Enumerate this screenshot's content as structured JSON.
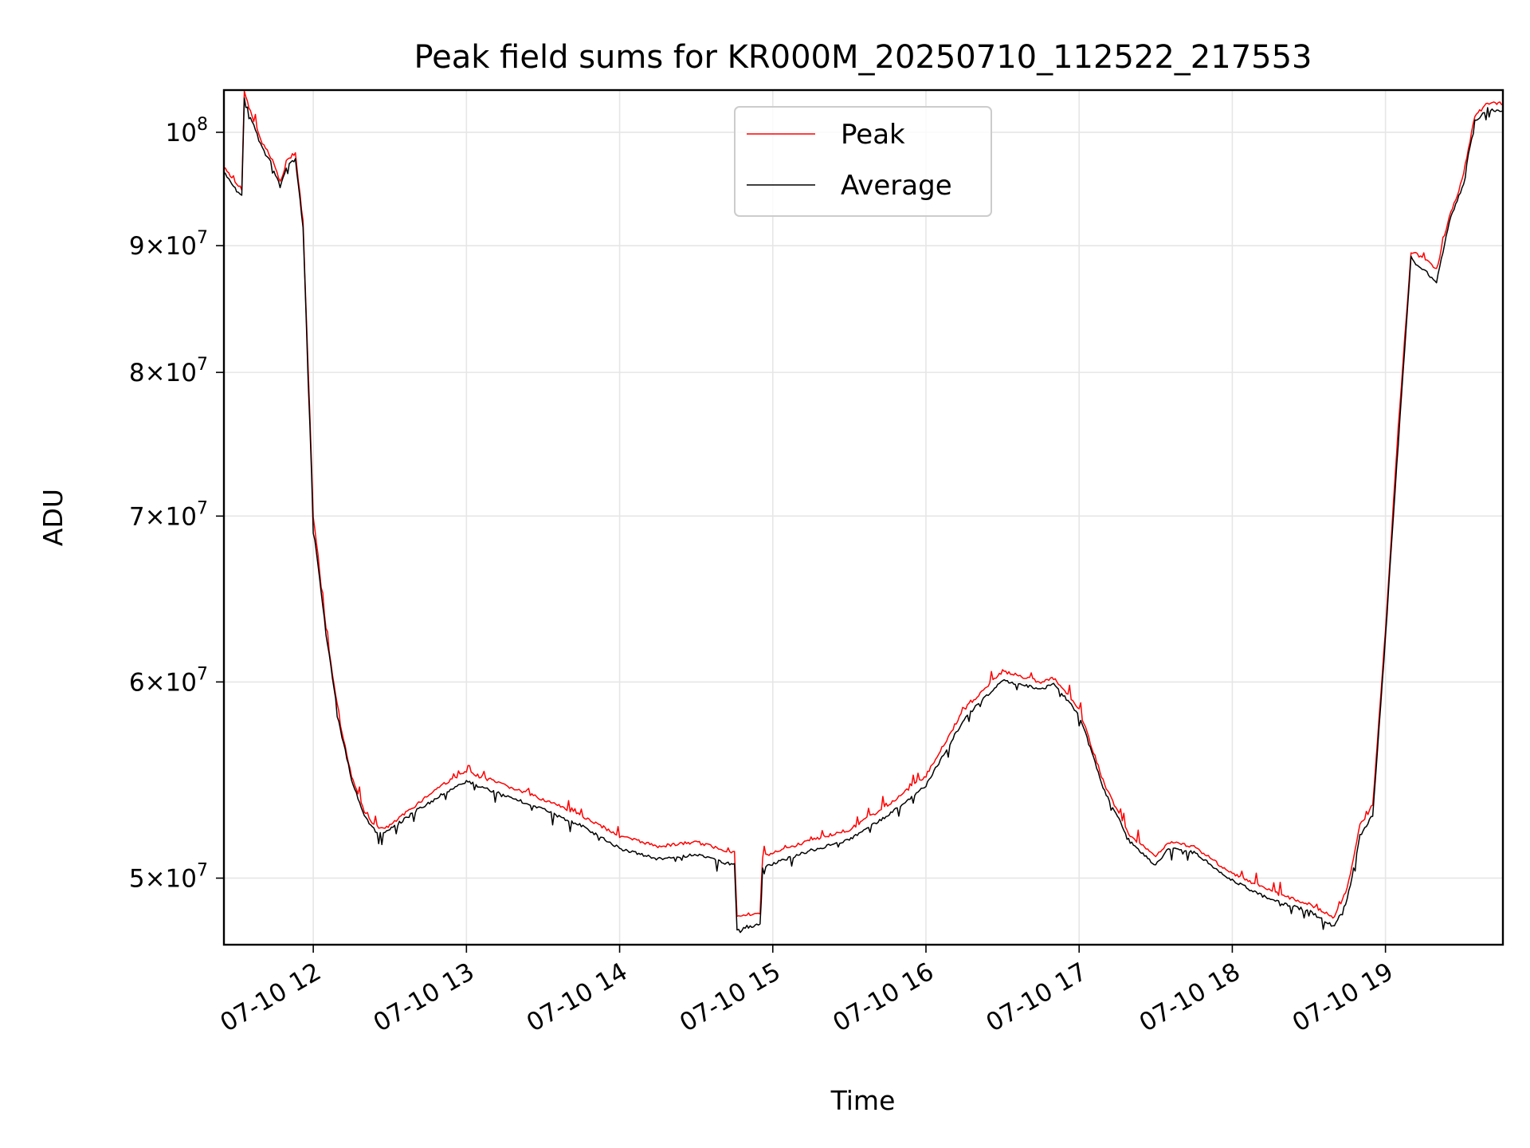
{
  "chart_data": {
    "type": "line",
    "title": "Peak field sums for KR000M_20250710_112522_217553",
    "xlabel": "Time",
    "ylabel": "ADU",
    "yscale": "log",
    "xlim": [
      "07-10 11:25",
      "07-10 19:46"
    ],
    "ylim": [
      47000000,
      104000000
    ],
    "grid": true,
    "legend_position": "top-center",
    "x_ticks": [
      {
        "value": "07-10 12:00",
        "label": "07-10 12"
      },
      {
        "value": "07-10 13:00",
        "label": "07-10 13"
      },
      {
        "value": "07-10 14:00",
        "label": "07-10 14"
      },
      {
        "value": "07-10 15:00",
        "label": "07-10 15"
      },
      {
        "value": "07-10 16:00",
        "label": "07-10 16"
      },
      {
        "value": "07-10 17:00",
        "label": "07-10 17"
      },
      {
        "value": "07-10 18:00",
        "label": "07-10 18"
      },
      {
        "value": "07-10 19:00",
        "label": "07-10 19"
      }
    ],
    "y_ticks": [
      {
        "value": 50000000,
        "mantissa": "5",
        "exponent": "7"
      },
      {
        "value": 60000000,
        "mantissa": "6",
        "exponent": "7"
      },
      {
        "value": 70000000,
        "mantissa": "7",
        "exponent": "7"
      },
      {
        "value": 80000000,
        "mantissa": "8",
        "exponent": "7"
      },
      {
        "value": 90000000,
        "mantissa": "9",
        "exponent": "7"
      },
      {
        "value": 100000000,
        "mantissa": "",
        "exponent": "8"
      }
    ],
    "series": [
      {
        "name": "Peak",
        "color": "#ff0000",
        "points": [
          [
            "07-10 11:25",
            96800000
          ],
          [
            "07-10 11:30",
            95200000
          ],
          [
            "07-10 11:32",
            94900000
          ],
          [
            "07-10 11:33",
            103800000
          ],
          [
            "07-10 11:36",
            101500000
          ],
          [
            "07-10 11:40",
            99000000
          ],
          [
            "07-10 11:44",
            97500000
          ],
          [
            "07-10 11:47",
            95500000
          ],
          [
            "07-10 11:50",
            97500000
          ],
          [
            "07-10 11:53",
            98000000
          ],
          [
            "07-10 11:56",
            92000000
          ],
          [
            "07-10 12:00",
            70000000
          ],
          [
            "07-10 12:05",
            63000000
          ],
          [
            "07-10 12:10",
            58000000
          ],
          [
            "07-10 12:15",
            55000000
          ],
          [
            "07-10 12:20",
            53200000
          ],
          [
            "07-10 12:25",
            52300000
          ],
          [
            "07-10 12:30",
            52500000
          ],
          [
            "07-10 12:40",
            53500000
          ],
          [
            "07-10 12:50",
            54500000
          ],
          [
            "07-10 13:00",
            55200000
          ],
          [
            "07-10 13:15",
            54500000
          ],
          [
            "07-10 13:30",
            53800000
          ],
          [
            "07-10 13:45",
            53000000
          ],
          [
            "07-10 14:00",
            52000000
          ],
          [
            "07-10 14:15",
            51500000
          ],
          [
            "07-10 14:30",
            51700000
          ],
          [
            "07-10 14:45",
            51200000
          ],
          [
            "07-10 14:46",
            48300000
          ],
          [
            "07-10 14:55",
            48400000
          ],
          [
            "07-10 14:56",
            51000000
          ],
          [
            "07-10 15:15",
            51800000
          ],
          [
            "07-10 15:30",
            52300000
          ],
          [
            "07-10 15:45",
            53500000
          ],
          [
            "07-10 16:00",
            55000000
          ],
          [
            "07-10 16:15",
            58500000
          ],
          [
            "07-10 16:30",
            60600000
          ],
          [
            "07-10 16:45",
            60000000
          ],
          [
            "07-10 16:50",
            60200000
          ],
          [
            "07-10 17:00",
            58500000
          ],
          [
            "07-10 17:10",
            54500000
          ],
          [
            "07-10 17:20",
            52000000
          ],
          [
            "07-10 17:30",
            51000000
          ],
          [
            "07-10 17:35",
            51700000
          ],
          [
            "07-10 17:45",
            51500000
          ],
          [
            "07-10 18:00",
            50200000
          ],
          [
            "07-10 18:15",
            49400000
          ],
          [
            "07-10 18:30",
            48800000
          ],
          [
            "07-10 18:40",
            48200000
          ],
          [
            "07-10 18:45",
            49500000
          ],
          [
            "07-10 18:50",
            52500000
          ],
          [
            "07-10 18:55",
            53500000
          ],
          [
            "07-10 19:00",
            63000000
          ],
          [
            "07-10 19:05",
            76000000
          ],
          [
            "07-10 19:10",
            89500000
          ],
          [
            "07-10 19:15",
            89000000
          ],
          [
            "07-10 19:20",
            88000000
          ],
          [
            "07-10 19:25",
            92500000
          ],
          [
            "07-10 19:30",
            95500000
          ],
          [
            "07-10 19:35",
            101500000
          ],
          [
            "07-10 19:40",
            102800000
          ],
          [
            "07-10 19:46",
            102600000
          ]
        ]
      },
      {
        "name": "Average",
        "color": "#000000",
        "points": [
          [
            "07-10 11:25",
            96300000
          ],
          [
            "07-10 11:30",
            94700000
          ],
          [
            "07-10 11:32",
            94400000
          ],
          [
            "07-10 11:33",
            103300000
          ],
          [
            "07-10 11:36",
            101000000
          ],
          [
            "07-10 11:40",
            98500000
          ],
          [
            "07-10 11:44",
            97000000
          ],
          [
            "07-10 11:47",
            95000000
          ],
          [
            "07-10 11:50",
            97000000
          ],
          [
            "07-10 11:53",
            97500000
          ],
          [
            "07-10 11:56",
            91500000
          ],
          [
            "07-10 12:00",
            69500000
          ],
          [
            "07-10 12:05",
            62800000
          ],
          [
            "07-10 12:10",
            57800000
          ],
          [
            "07-10 12:15",
            54800000
          ],
          [
            "07-10 12:20",
            53000000
          ],
          [
            "07-10 12:25",
            52100000
          ],
          [
            "07-10 12:30",
            52300000
          ],
          [
            "07-10 12:40",
            53200000
          ],
          [
            "07-10 12:50",
            54000000
          ],
          [
            "07-10 13:00",
            54700000
          ],
          [
            "07-10 13:15",
            54000000
          ],
          [
            "07-10 13:30",
            53300000
          ],
          [
            "07-10 13:45",
            52500000
          ],
          [
            "07-10 14:00",
            51400000
          ],
          [
            "07-10 14:15",
            50900000
          ],
          [
            "07-10 14:30",
            51100000
          ],
          [
            "07-10 14:45",
            50600000
          ],
          [
            "07-10 14:46",
            47700000
          ],
          [
            "07-10 14:55",
            47900000
          ],
          [
            "07-10 14:56",
            50500000
          ],
          [
            "07-10 15:15",
            51300000
          ],
          [
            "07-10 15:30",
            51800000
          ],
          [
            "07-10 15:45",
            53000000
          ],
          [
            "07-10 16:00",
            54500000
          ],
          [
            "07-10 16:15",
            58000000
          ],
          [
            "07-10 16:30",
            60100000
          ],
          [
            "07-10 16:45",
            59600000
          ],
          [
            "07-10 16:50",
            59900000
          ],
          [
            "07-10 17:00",
            58200000
          ],
          [
            "07-10 17:10",
            54200000
          ],
          [
            "07-10 17:20",
            51700000
          ],
          [
            "07-10 17:30",
            50600000
          ],
          [
            "07-10 17:35",
            51400000
          ],
          [
            "07-10 17:45",
            51200000
          ],
          [
            "07-10 18:00",
            49900000
          ],
          [
            "07-10 18:15",
            49000000
          ],
          [
            "07-10 18:30",
            48500000
          ],
          [
            "07-10 18:40",
            47800000
          ],
          [
            "07-10 18:45",
            49000000
          ],
          [
            "07-10 18:50",
            52000000
          ],
          [
            "07-10 18:55",
            53000000
          ],
          [
            "07-10 19:00",
            62500000
          ],
          [
            "07-10 19:05",
            75000000
          ],
          [
            "07-10 19:10",
            89000000
          ],
          [
            "07-10 19:15",
            88000000
          ],
          [
            "07-10 19:20",
            87000000
          ],
          [
            "07-10 19:25",
            92000000
          ],
          [
            "07-10 19:30",
            95000000
          ],
          [
            "07-10 19:35",
            101000000
          ],
          [
            "07-10 19:40",
            102200000
          ],
          [
            "07-10 19:46",
            102000000
          ]
        ]
      }
    ]
  }
}
